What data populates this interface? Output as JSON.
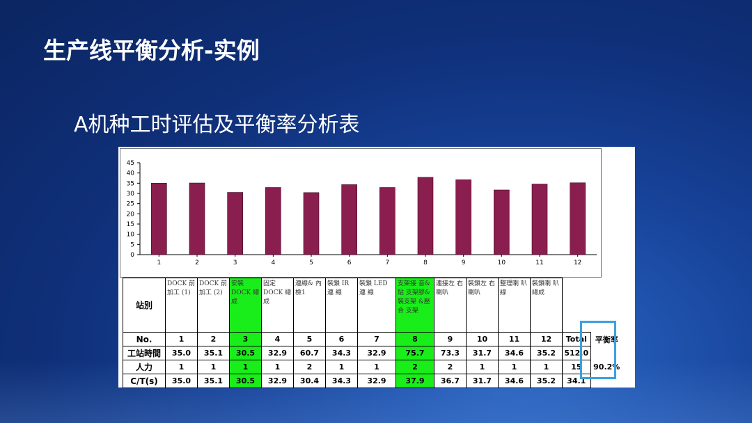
{
  "slide": {
    "title": "生产线平衡分析-实例",
    "subtitle": "A机种工时评估及平衡率分析表"
  },
  "chart_data": {
    "type": "bar",
    "categories": [
      "1",
      "2",
      "3",
      "4",
      "5",
      "6",
      "7",
      "8",
      "9",
      "10",
      "11",
      "12"
    ],
    "values": [
      35.0,
      35.1,
      30.5,
      32.9,
      30.4,
      34.3,
      32.9,
      37.9,
      36.7,
      31.7,
      34.6,
      35.2
    ],
    "yticks": [
      "0",
      "5",
      "10",
      "15",
      "20",
      "25",
      "30",
      "35",
      "40",
      "45"
    ],
    "ylim": [
      0,
      45
    ],
    "bar_color": "#8a1f4f"
  },
  "table": {
    "station_label": "站別",
    "stations": [
      "DOCK 前加工 (1)",
      "DOCK 前加工 (2)",
      "安裝 DOCK 總成",
      "固定 DOCK 總成",
      "連線& 內檢1",
      "裝鎖 IR 連 線",
      "裝鎖 LED 連 線",
      "支架接 音&貼 支架膠& 裝支架 &壓合 支架",
      "連接左 右喇叭",
      "裝鎖左 右喇叭",
      "整理喇 叭線",
      "裝鎖喇 叭總成"
    ],
    "rows": [
      {
        "label": "No.",
        "cells": [
          "1",
          "2",
          "3",
          "4",
          "5",
          "6",
          "7",
          "8",
          "9",
          "10",
          "11",
          "12",
          "Total"
        ]
      },
      {
        "label": "工站時間",
        "cells": [
          "35.0",
          "35.1",
          "30.5",
          "32.9",
          "60.7",
          "34.3",
          "32.9",
          "75.7",
          "73.3",
          "31.7",
          "34.6",
          "35.2",
          "512.0"
        ]
      },
      {
        "label": "人力",
        "cells": [
          "1",
          "1",
          "1",
          "1",
          "2",
          "1",
          "1",
          "2",
          "2",
          "1",
          "1",
          "1",
          "15"
        ]
      },
      {
        "label": "C/T(s)",
        "cells": [
          "35.0",
          "35.1",
          "30.5",
          "32.9",
          "30.4",
          "34.3",
          "32.9",
          "37.9",
          "36.7",
          "31.7",
          "34.6",
          "35.2",
          "34.1"
        ]
      }
    ],
    "balance_label": "平衡率",
    "balance_value": "90.2%",
    "highlight_color": "#1aee1a",
    "box_color": "#39a0df"
  }
}
